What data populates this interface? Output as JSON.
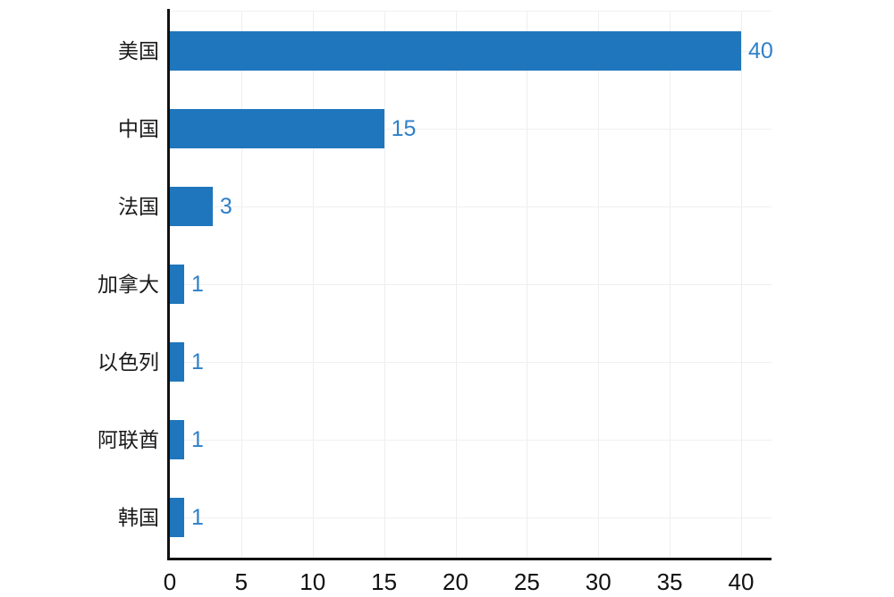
{
  "chart_data": {
    "type": "bar",
    "orientation": "horizontal",
    "title": "",
    "xlabel": "",
    "ylabel": "",
    "categories": [
      "美国",
      "中国",
      "法国",
      "加拿大",
      "以色列",
      "阿联酋",
      "韩国"
    ],
    "values": [
      40,
      15,
      3,
      1,
      1,
      1,
      1
    ],
    "value_labels": [
      "40",
      "15",
      "3",
      "1",
      "1",
      "1",
      "1"
    ],
    "x_ticks": [
      "0",
      "5",
      "10",
      "15",
      "20",
      "25",
      "30",
      "35",
      "40"
    ],
    "x_tick_values": [
      0,
      5,
      10,
      15,
      20,
      25,
      30,
      35,
      40
    ],
    "xlim": [
      0,
      40
    ],
    "grid": true,
    "legend": "none",
    "colors": {
      "bar": "#1f76bc",
      "value_label": "#2e80c8",
      "axis_line": "#111111",
      "gridline": "#eeeeee",
      "tick_text": "#111111",
      "category_text": "#1a1a1a",
      "background": "#ffffff"
    }
  }
}
